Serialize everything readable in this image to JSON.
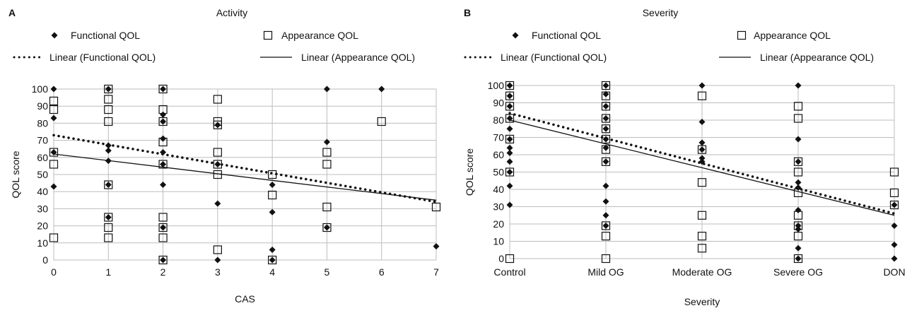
{
  "chart_data": [
    {
      "type": "scatter",
      "panel_label": "A",
      "title": "Activity",
      "xlabel": "CAS",
      "ylabel": "QOL score",
      "xlim": [
        0,
        7
      ],
      "ylim": [
        0,
        100
      ],
      "x_ticks": [
        "0",
        "1",
        "2",
        "3",
        "4",
        "5",
        "6",
        "7"
      ],
      "y_ticks": [
        "0",
        "10",
        "20",
        "30",
        "40",
        "50",
        "60",
        "70",
        "80",
        "90",
        "100"
      ],
      "grid": true,
      "legend_position": "top",
      "series": [
        {
          "name": "Functional QOL",
          "marker": "diamond-filled",
          "points": [
            [
              0,
              100
            ],
            [
              0,
              83
            ],
            [
              0,
              63
            ],
            [
              0,
              43
            ],
            [
              1,
              100
            ],
            [
              1,
              67
            ],
            [
              1,
              64
            ],
            [
              1,
              58
            ],
            [
              1,
              44
            ],
            [
              1,
              25
            ],
            [
              2,
              100
            ],
            [
              2,
              85
            ],
            [
              2,
              81
            ],
            [
              2,
              71
            ],
            [
              2,
              63
            ],
            [
              2,
              56
            ],
            [
              2,
              44
            ],
            [
              2,
              19
            ],
            [
              2,
              0
            ],
            [
              3,
              79
            ],
            [
              3,
              56
            ],
            [
              3,
              33
            ],
            [
              3,
              0
            ],
            [
              4,
              44
            ],
            [
              4,
              28
            ],
            [
              4,
              6
            ],
            [
              4,
              0
            ],
            [
              5,
              100
            ],
            [
              5,
              69
            ],
            [
              5,
              19
            ],
            [
              6,
              100
            ],
            [
              7,
              8
            ]
          ]
        },
        {
          "name": "Appearance QOL",
          "marker": "square-open",
          "points": [
            [
              0,
              93
            ],
            [
              0,
              88
            ],
            [
              0,
              63
            ],
            [
              0,
              56
            ],
            [
              0,
              13
            ],
            [
              1,
              100
            ],
            [
              1,
              94
            ],
            [
              1,
              88
            ],
            [
              1,
              81
            ],
            [
              1,
              44
            ],
            [
              1,
              25
            ],
            [
              1,
              19
            ],
            [
              1,
              13
            ],
            [
              2,
              100
            ],
            [
              2,
              88
            ],
            [
              2,
              81
            ],
            [
              2,
              69
            ],
            [
              2,
              56
            ],
            [
              2,
              25
            ],
            [
              2,
              19
            ],
            [
              2,
              13
            ],
            [
              2,
              0
            ],
            [
              3,
              94
            ],
            [
              3,
              81
            ],
            [
              3,
              79
            ],
            [
              3,
              63
            ],
            [
              3,
              56
            ],
            [
              3,
              50
            ],
            [
              3,
              6
            ],
            [
              4,
              50
            ],
            [
              4,
              38
            ],
            [
              4,
              0
            ],
            [
              5,
              63
            ],
            [
              5,
              56
            ],
            [
              5,
              31
            ],
            [
              5,
              19
            ],
            [
              6,
              81
            ],
            [
              7,
              31
            ]
          ]
        },
        {
          "name": "Linear (Functional QOL)",
          "kind": "trend",
          "style": "dotted",
          "points": [
            [
              0,
              73
            ],
            [
              7,
              34
            ]
          ]
        },
        {
          "name": "Linear (Appearance QOL)",
          "kind": "trend",
          "style": "solid",
          "points": [
            [
              0,
              62
            ],
            [
              7,
              35
            ]
          ]
        }
      ]
    },
    {
      "type": "scatter",
      "panel_label": "B",
      "title": "Severity",
      "xlabel": "Severity",
      "ylabel": "QOL score",
      "categories": [
        "Control",
        "Mild OG",
        "Moderate OG",
        "Severe OG",
        "DON"
      ],
      "y_ticks": [
        "0",
        "10",
        "20",
        "30",
        "40",
        "50",
        "60",
        "70",
        "80",
        "90",
        "100"
      ],
      "ylim": [
        0,
        100
      ],
      "grid": true,
      "legend_position": "top",
      "series": [
        {
          "name": "Functional QOL",
          "marker": "diamond-filled",
          "points": [
            [
              0,
              100
            ],
            [
              0,
              94
            ],
            [
              0,
              88
            ],
            [
              0,
              81
            ],
            [
              0,
              75
            ],
            [
              0,
              69
            ],
            [
              0,
              64
            ],
            [
              0,
              61
            ],
            [
              0,
              56
            ],
            [
              0,
              50
            ],
            [
              0,
              42
            ],
            [
              0,
              31
            ],
            [
              1,
              100
            ],
            [
              1,
              95
            ],
            [
              1,
              88
            ],
            [
              1,
              81
            ],
            [
              1,
              75
            ],
            [
              1,
              69
            ],
            [
              1,
              64
            ],
            [
              1,
              56
            ],
            [
              1,
              42
            ],
            [
              1,
              33
            ],
            [
              1,
              25
            ],
            [
              1,
              19
            ],
            [
              2,
              100
            ],
            [
              2,
              79
            ],
            [
              2,
              67
            ],
            [
              2,
              63
            ],
            [
              2,
              58
            ],
            [
              2,
              56
            ],
            [
              3,
              100
            ],
            [
              3,
              69
            ],
            [
              3,
              56
            ],
            [
              3,
              44
            ],
            [
              3,
              41
            ],
            [
              3,
              28
            ],
            [
              3,
              19
            ],
            [
              3,
              17
            ],
            [
              3,
              6
            ],
            [
              3,
              0
            ],
            [
              4,
              31
            ],
            [
              4,
              19
            ],
            [
              4,
              8
            ],
            [
              4,
              0
            ]
          ]
        },
        {
          "name": "Appearance QOL",
          "marker": "square-open",
          "points": [
            [
              0,
              100
            ],
            [
              0,
              94
            ],
            [
              0,
              88
            ],
            [
              0,
              81
            ],
            [
              0,
              69
            ],
            [
              0,
              50
            ],
            [
              0,
              0
            ],
            [
              1,
              100
            ],
            [
              1,
              94
            ],
            [
              1,
              88
            ],
            [
              1,
              81
            ],
            [
              1,
              75
            ],
            [
              1,
              69
            ],
            [
              1,
              63
            ],
            [
              1,
              56
            ],
            [
              1,
              19
            ],
            [
              1,
              13
            ],
            [
              1,
              0
            ],
            [
              2,
              94
            ],
            [
              2,
              63
            ],
            [
              2,
              44
            ],
            [
              2,
              25
            ],
            [
              2,
              13
            ],
            [
              2,
              6
            ],
            [
              3,
              88
            ],
            [
              3,
              81
            ],
            [
              3,
              56
            ],
            [
              3,
              50
            ],
            [
              3,
              38
            ],
            [
              3,
              25
            ],
            [
              3,
              19
            ],
            [
              3,
              13
            ],
            [
              3,
              0
            ],
            [
              4,
              50
            ],
            [
              4,
              38
            ],
            [
              4,
              31
            ]
          ]
        },
        {
          "name": "Linear (Functional QOL)",
          "kind": "trend",
          "style": "dotted",
          "points": [
            [
              0,
              84
            ],
            [
              4,
              26
            ]
          ]
        },
        {
          "name": "Linear (Appearance QOL)",
          "kind": "trend",
          "style": "solid",
          "points": [
            [
              0,
              80
            ],
            [
              4,
              25
            ]
          ]
        }
      ]
    }
  ]
}
